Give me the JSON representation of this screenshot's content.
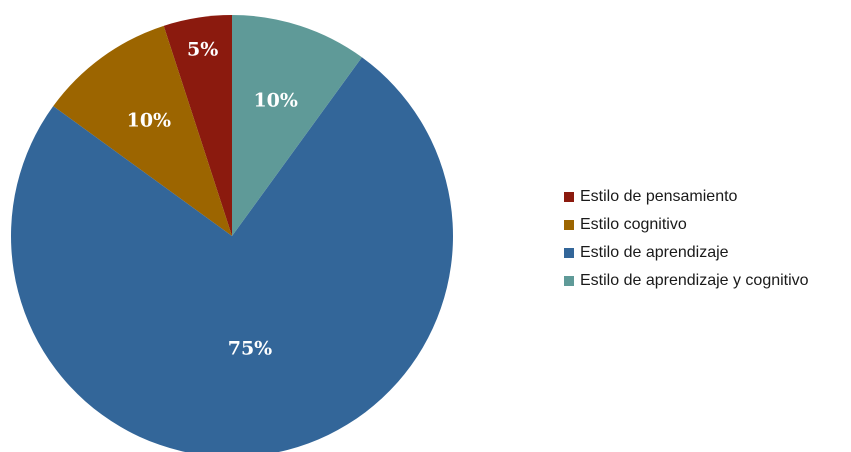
{
  "chart_data": {
    "type": "pie",
    "title": "",
    "slices": [
      {
        "label": "Estilo de pensamiento",
        "value": 5,
        "value_label": "5%",
        "color": "#8b1a0e"
      },
      {
        "label": "Estilo cognitivo",
        "value": 10,
        "value_label": "10%",
        "color": "#9c6500"
      },
      {
        "label": "Estilo de aprendizaje",
        "value": 75,
        "value_label": "75%",
        "color": "#336699"
      },
      {
        "label": "Estilo de aprendizaje y cognitivo",
        "value": 10,
        "value_label": "10%",
        "color": "#5f9a98"
      }
    ],
    "legend_position": "right"
  }
}
